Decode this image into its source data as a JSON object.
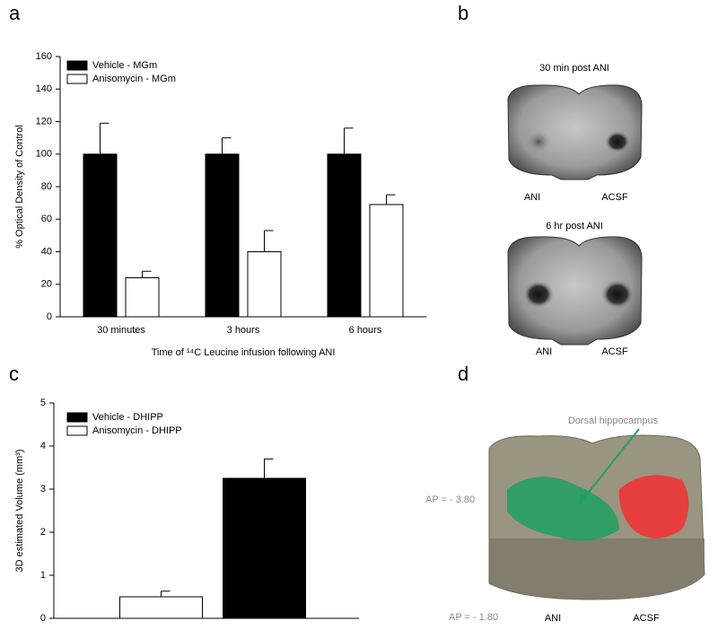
{
  "chart_data": [
    {
      "type": "bar",
      "ylabel": "% Optical Density of Control",
      "xlabel": "Time of ¹⁴C Leucine infusion following ANI",
      "categories": [
        "30 minutes",
        "3 hours",
        "6 hours"
      ],
      "series": [
        {
          "name": "Vehicle - MGm",
          "color": "#000000",
          "values": [
            100,
            100,
            100
          ],
          "errors": [
            19,
            10,
            16
          ]
        },
        {
          "name": "Anisomycin - MGm",
          "color": "#ffffff",
          "values": [
            24,
            40,
            69
          ],
          "errors": [
            4,
            13,
            6
          ]
        }
      ],
      "ylim": [
        0,
        160
      ],
      "yticks": [
        0,
        20,
        40,
        60,
        80,
        100,
        120,
        140,
        160
      ],
      "grid": false,
      "legend": "upper left"
    },
    {
      "type": "bar",
      "ylabel": "3D estimated Volume (mm³)",
      "categories": [
        null,
        null
      ],
      "series": [
        {
          "name": "Vehicle - DHIPP",
          "color": "#000000",
          "values": [
            null,
            3.25
          ],
          "errors": [
            null,
            0.45
          ]
        },
        {
          "name": "Anisomycin - DHIPP",
          "color": "#ffffff",
          "values": [
            0.5,
            null
          ],
          "errors": [
            0.13,
            null
          ]
        }
      ],
      "ylim": [
        0,
        5
      ],
      "yticks": [
        0,
        1,
        2,
        3,
        4,
        5
      ],
      "grid": false,
      "legend": "upper left"
    }
  ],
  "panel_labels": [
    "a",
    "b",
    "c",
    "d"
  ],
  "panel_b": [
    {
      "title": "30 min post ANI",
      "left_label": "ANI",
      "right_label": "ACSF"
    },
    {
      "title": "6 hr post ANI",
      "left_label": "ANI",
      "right_label": "ACSF"
    }
  ],
  "panel_d": {
    "annotation": "Dorsal hippocampus",
    "ap_upper": "AP = - 3.80",
    "ap_lower": "AP = - 1.80",
    "left_label": "ANI",
    "right_label": "ACSF"
  }
}
